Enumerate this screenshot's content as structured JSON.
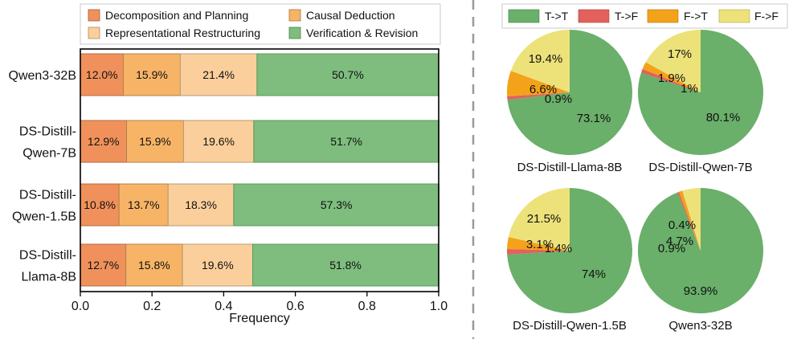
{
  "colors": {
    "decomposition": "#f0915b",
    "causal": "#f7b467",
    "representational": "#fbcf9b",
    "verification": "#7ebd7e",
    "tt": "#6aaf6a",
    "tf": "#e3605c",
    "ft": "#f3a21a",
    "ff": "#ede27a"
  },
  "chart_data": [
    {
      "type": "bar",
      "orientation": "horizontal",
      "stacked": true,
      "xlabel": "Frequency",
      "xlim": [
        0.0,
        1.0
      ],
      "xticks": [
        "0.0",
        "0.2",
        "0.4",
        "0.6",
        "0.8",
        "1.0"
      ],
      "categories": [
        [
          "Qwen3-32B"
        ],
        [
          "DS-Distill-",
          "Qwen-7B"
        ],
        [
          "DS-Distill-",
          "Qwen-1.5B"
        ],
        [
          "DS-Distill-",
          "Llama-8B"
        ]
      ],
      "series": [
        {
          "name": "Decomposition and Planning",
          "color_key": "decomposition",
          "values": [
            0.12,
            0.129,
            0.108,
            0.127
          ],
          "labels": [
            "12.0%",
            "12.9%",
            "10.8%",
            "12.7%"
          ]
        },
        {
          "name": "Causal Deduction",
          "color_key": "causal",
          "values": [
            0.159,
            0.159,
            0.137,
            0.158
          ],
          "labels": [
            "15.9%",
            "15.9%",
            "13.7%",
            "15.8%"
          ]
        },
        {
          "name": "Representational Restructuring",
          "color_key": "representational",
          "values": [
            0.214,
            0.196,
            0.183,
            0.196
          ],
          "labels": [
            "21.4%",
            "19.6%",
            "18.3%",
            "19.6%"
          ]
        },
        {
          "name": "Verification & Revision",
          "color_key": "verification",
          "values": [
            0.507,
            0.517,
            0.573,
            0.518
          ],
          "labels": [
            "50.7%",
            "51.7%",
            "57.3%",
            "51.8%"
          ]
        }
      ],
      "legend": "top"
    },
    {
      "type": "pie",
      "legend": [
        "T->T",
        "T->F",
        "F->T",
        "F->F"
      ],
      "legend_color_keys": [
        "tt",
        "tf",
        "ft",
        "ff"
      ],
      "pies": [
        {
          "name": "DS-Distill-Llama-8B",
          "values": [
            73.1,
            0.9,
            6.6,
            19.4
          ],
          "labels": [
            "73.1%",
            "0.9%",
            "6.6%",
            "19.4%"
          ]
        },
        {
          "name": "DS-Distill-Qwen-7B",
          "values": [
            80.1,
            1.0,
            1.9,
            17.0
          ],
          "labels": [
            "80.1%",
            "1%",
            "1.9%",
            "17%"
          ]
        },
        {
          "name": "DS-Distill-Qwen-1.5B",
          "values": [
            74.0,
            1.4,
            3.1,
            21.5
          ],
          "labels": [
            "74%",
            "1.4%",
            "3.1%",
            "21.5%"
          ]
        },
        {
          "name": "Qwen3-32B",
          "values": [
            93.9,
            0.4,
            0.9,
            4.7
          ],
          "labels": [
            "93.9%",
            "0.4%",
            "0.9%",
            "4.7%"
          ]
        }
      ]
    }
  ]
}
